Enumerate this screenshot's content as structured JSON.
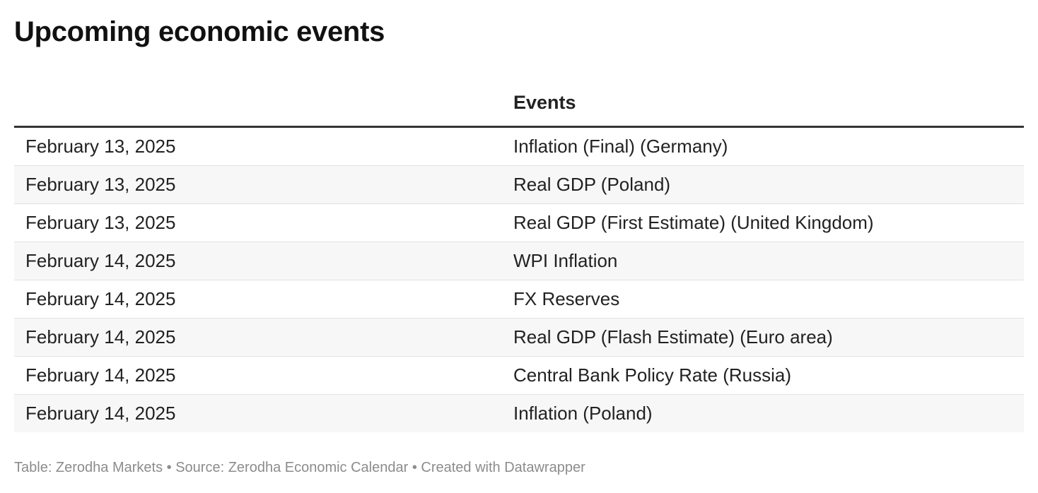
{
  "title": "Upcoming economic events",
  "chart_data": {
    "type": "table",
    "title": "Upcoming economic events",
    "columns": [
      "",
      "Events"
    ],
    "rows": [
      {
        "date": "February 13, 2025",
        "event": "Inflation (Final) (Germany)"
      },
      {
        "date": "February 13, 2025",
        "event": "Real GDP (Poland)"
      },
      {
        "date": "February 13, 2025",
        "event": "Real GDP (First Estimate) (United Kingdom)"
      },
      {
        "date": "February 14, 2025",
        "event": "WPI Inflation"
      },
      {
        "date": "February 14, 2025",
        "event": "FX Reserves"
      },
      {
        "date": "February 14, 2025",
        "event": "Real GDP (Flash Estimate) (Euro area)"
      },
      {
        "date": "February 14, 2025",
        "event": "Central Bank Policy Rate (Russia)"
      },
      {
        "date": "February 14, 2025",
        "event": "Inflation (Poland)"
      }
    ]
  },
  "footer": "Table: Zerodha Markets • Source: Zerodha Economic Calendar • Created with Datawrapper"
}
